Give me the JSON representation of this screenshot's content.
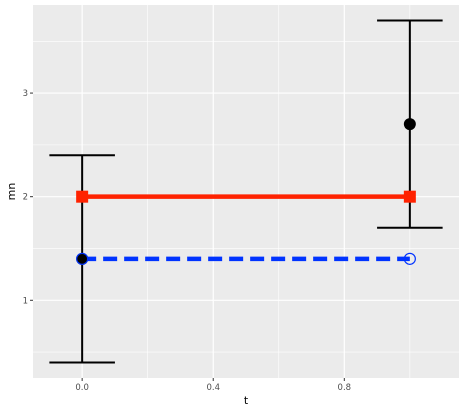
{
  "chart_data": {
    "type": "scatter",
    "xlabel": "t",
    "ylabel": "mn",
    "xlim": [
      -0.15,
      1.15
    ],
    "ylim": [
      0.25,
      3.85
    ],
    "x_ticks": [
      0.0,
      0.4,
      0.8
    ],
    "x_tick_labels": [
      "0.0",
      "0.4",
      "0.8"
    ],
    "y_ticks": [
      1,
      2,
      3
    ],
    "y_tick_labels": [
      "1",
      "2",
      "3"
    ],
    "grid": true,
    "legend": "none",
    "background": "#ebebeb",
    "grid_color": "#ffffff",
    "errorbar_series": {
      "color": "#000000",
      "x": [
        0,
        1
      ],
      "y": [
        1.4,
        2.7
      ],
      "lower": [
        0.4,
        1.7
      ],
      "upper": [
        2.4,
        3.7
      ],
      "cap_half_width": 0.1
    },
    "series": [
      {
        "x": [
          0,
          1
        ],
        "y": [
          2,
          2
        ],
        "color": "#ff2200",
        "line_style": "solid",
        "marker": "square"
      },
      {
        "x": [
          0,
          1
        ],
        "y": [
          1.4,
          1.4
        ],
        "color": "#0033ff",
        "line_style": "dashed",
        "marker": "circle"
      }
    ]
  }
}
